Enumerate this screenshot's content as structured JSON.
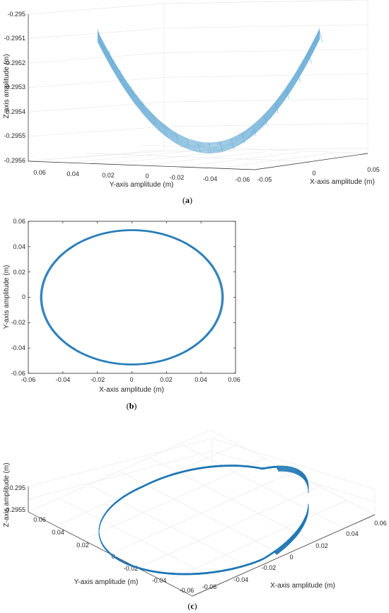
{
  "chart_data": [
    {
      "panel_label": "(a)",
      "type": "line",
      "kind": "3d-trajectory",
      "xlabel": "X-axis amplitude (m)",
      "ylabel": "Y-axis amplitude (m)",
      "zlabel": "Z-axis amplitude (m)",
      "x_ticks": [
        "-0.05",
        "0",
        "0.05"
      ],
      "y_ticks": [
        "0.06",
        "0.04",
        "0.02",
        "0",
        "-0.02",
        "-0.04",
        "-0.06"
      ],
      "z_ticks": [
        "-0.295",
        "-0.2951",
        "-0.2952",
        "-0.2953",
        "-0.2954",
        "-0.2955",
        "-0.2956"
      ],
      "xlim": [
        -0.05,
        0.05
      ],
      "ylim": [
        -0.06,
        0.06
      ],
      "zlim": [
        -0.2956,
        -0.295
      ],
      "grid": true,
      "series": [
        {
          "color": "#6baed6",
          "points": [
            {
              "x": -0.053,
              "y": 0,
              "z": -0.29551
            },
            {
              "x": -0.037,
              "y": 0.037,
              "z": -0.29543
            },
            {
              "x": 0,
              "y": 0.053,
              "z": -0.29531
            },
            {
              "x": 0.037,
              "y": 0.037,
              "z": -0.29519
            },
            {
              "x": 0.053,
              "y": 0,
              "z": -0.29511
            },
            {
              "x": 0.037,
              "y": -0.037,
              "z": -0.29519
            },
            {
              "x": 0,
              "y": -0.053,
              "z": -0.29531
            },
            {
              "x": -0.037,
              "y": -0.037,
              "z": -0.29543
            }
          ]
        }
      ]
    },
    {
      "panel_label": "(b)",
      "type": "line",
      "kind": "2d-trajectory",
      "xlabel": "X-axis amplitude (m)",
      "ylabel": "Y-axis amplitude (m)",
      "x_ticks": [
        "-0.06",
        "-0.04",
        "-0.02",
        "0",
        "0.02",
        "0.04",
        "0.06"
      ],
      "y_ticks": [
        "0.06",
        "0.04",
        "0.02",
        "0",
        "-0.02",
        "-0.04",
        "-0.06"
      ],
      "xlim": [
        -0.06,
        0.06
      ],
      "ylim": [
        -0.06,
        0.06
      ],
      "grid": false,
      "series": [
        {
          "color": "#1f77b4",
          "shape": "ellipse",
          "x_radius": 0.0525,
          "y_radius": 0.053,
          "center": [
            0,
            0
          ]
        }
      ]
    },
    {
      "panel_label": "(c)",
      "type": "line",
      "kind": "3d-trajectory",
      "xlabel": "X-axis amplitude (m)",
      "ylabel": "Y-axis amplitude (m)",
      "zlabel": "Z-axis amplitude (m)",
      "x_ticks": [
        "-0.06",
        "-0.04",
        "-0.02",
        "0",
        "0.02",
        "0.04",
        "0.06"
      ],
      "y_ticks": [
        "0.06",
        "0.04",
        "0.02",
        "0",
        "-0.02",
        "-0.04",
        "-0.06"
      ],
      "z_ticks": [
        "-0.295",
        "-0.2955"
      ],
      "xlim": [
        -0.06,
        0.06
      ],
      "ylim": [
        -0.06,
        0.06
      ],
      "zlim": [
        -0.2956,
        -0.295
      ],
      "grid": true,
      "series": [
        {
          "color": "#1f77b4",
          "shape": "tilted-loop"
        }
      ]
    }
  ]
}
